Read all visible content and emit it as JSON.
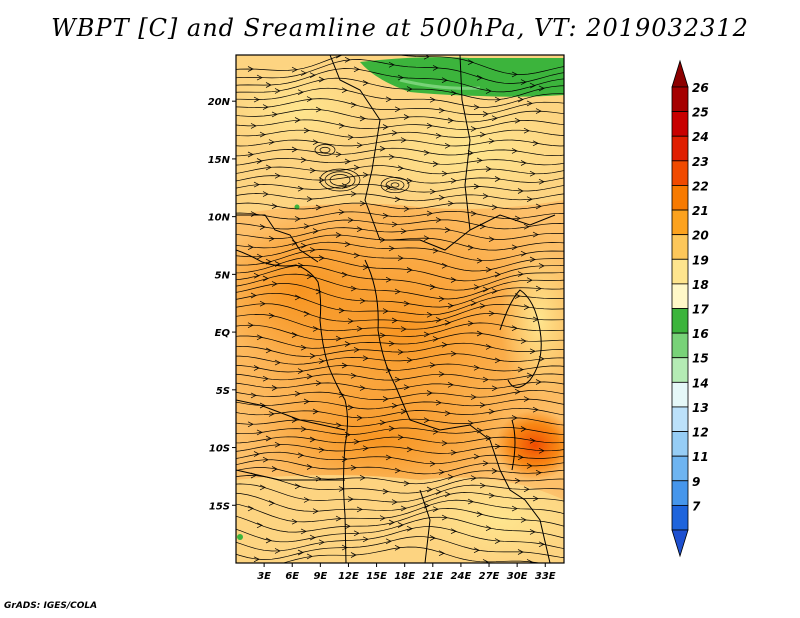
{
  "title": "WBPT [C] and Sreamline at 500hPa, VT: 2019032312",
  "credit": "GrADS: IGES/COLA",
  "map": {
    "lon_range": [
      0,
      35
    ],
    "lat_range": [
      -20,
      24
    ],
    "x_ticks": [
      {
        "lon": 3,
        "label": "3E"
      },
      {
        "lon": 6,
        "label": "6E"
      },
      {
        "lon": 9,
        "label": "9E"
      },
      {
        "lon": 12,
        "label": "12E"
      },
      {
        "lon": 15,
        "label": "15E"
      },
      {
        "lon": 18,
        "label": "18E"
      },
      {
        "lon": 21,
        "label": "21E"
      },
      {
        "lon": 24,
        "label": "24E"
      },
      {
        "lon": 27,
        "label": "27E"
      },
      {
        "lon": 30,
        "label": "30E"
      },
      {
        "lon": 33,
        "label": "33E"
      }
    ],
    "y_ticks": [
      {
        "lat": 20,
        "label": "20N"
      },
      {
        "lat": 15,
        "label": "15N"
      },
      {
        "lat": 10,
        "label": "10N"
      },
      {
        "lat": 5,
        "label": "5N"
      },
      {
        "lat": 0,
        "label": "EQ"
      },
      {
        "lat": -5,
        "label": "5S"
      },
      {
        "lat": -10,
        "label": "10S"
      },
      {
        "lat": -15,
        "label": "15S"
      }
    ]
  },
  "colorbar": {
    "levels": [
      {
        "label": "26",
        "color": "#a50000"
      },
      {
        "label": "25",
        "color": "#c80000"
      },
      {
        "label": "24",
        "color": "#e01e00"
      },
      {
        "label": "23",
        "color": "#f04a00"
      },
      {
        "label": "22",
        "color": "#f77a00"
      },
      {
        "label": "21",
        "color": "#fca21e"
      },
      {
        "label": "20",
        "color": "#fdc75a"
      },
      {
        "label": "19",
        "color": "#fee58e"
      },
      {
        "label": "18",
        "color": "#fff8c8"
      },
      {
        "label": "17",
        "color": "#3cb43c"
      },
      {
        "label": "16",
        "color": "#78d278"
      },
      {
        "label": "15",
        "color": "#b4ebb4"
      },
      {
        "label": "14",
        "color": "#e6f8f8"
      },
      {
        "label": "13",
        "color": "#bce1fa"
      },
      {
        "label": "12",
        "color": "#96cdf5"
      },
      {
        "label": "11",
        "color": "#6eb4f0"
      },
      {
        "label": "9",
        "color": "#4696eb"
      },
      {
        "label": "7",
        "color": "#1e64dc"
      }
    ],
    "top_color": "#8c0000",
    "bottom_color": "#1e50d0"
  }
}
